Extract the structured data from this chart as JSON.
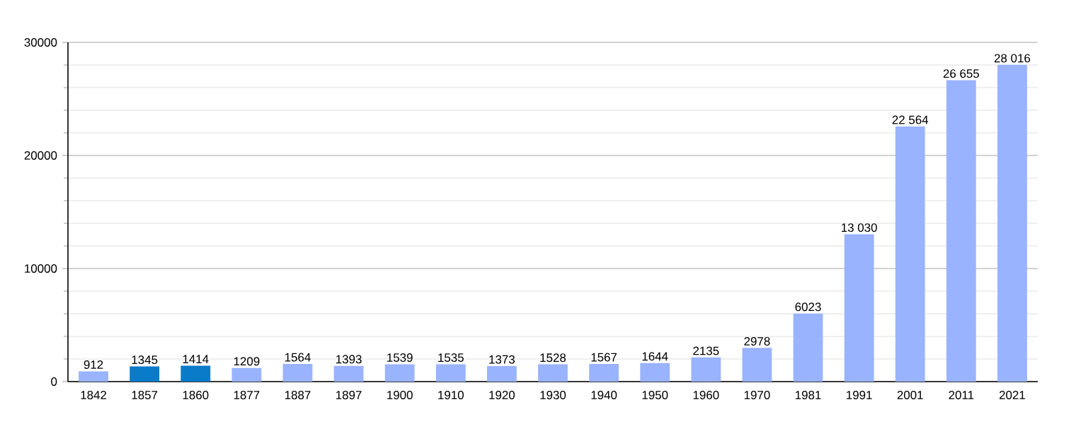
{
  "chart_data": {
    "type": "bar",
    "categories": [
      "1842",
      "1857",
      "1860",
      "1877",
      "1887",
      "1897",
      "1900",
      "1910",
      "1920",
      "1930",
      "1940",
      "1950",
      "1960",
      "1970",
      "1981",
      "1991",
      "2001",
      "2011",
      "2021"
    ],
    "values": [
      912,
      1345,
      1414,
      1209,
      1564,
      1393,
      1539,
      1535,
      1373,
      1528,
      1567,
      1644,
      2135,
      2978,
      6023,
      13030,
      22564,
      26655,
      28016
    ],
    "value_labels": [
      "912",
      "1345",
      "1414",
      "1209",
      "1564",
      "1393",
      "1539",
      "1535",
      "1373",
      "1528",
      "1567",
      "1644",
      "2135",
      "2978",
      "6023",
      "13 030",
      "22 564",
      "26 655",
      "28 016"
    ],
    "colors": [
      "#99b3ff",
      "#0a7bc9",
      "#0a7bc9",
      "#99b3ff",
      "#99b3ff",
      "#99b3ff",
      "#99b3ff",
      "#99b3ff",
      "#99b3ff",
      "#99b3ff",
      "#99b3ff",
      "#99b3ff",
      "#99b3ff",
      "#99b3ff",
      "#99b3ff",
      "#99b3ff",
      "#99b3ff",
      "#99b3ff",
      "#99b3ff"
    ],
    "ylim": [
      0,
      30000
    ],
    "yticks": [
      0,
      10000,
      20000,
      30000
    ],
    "grid": "y"
  }
}
